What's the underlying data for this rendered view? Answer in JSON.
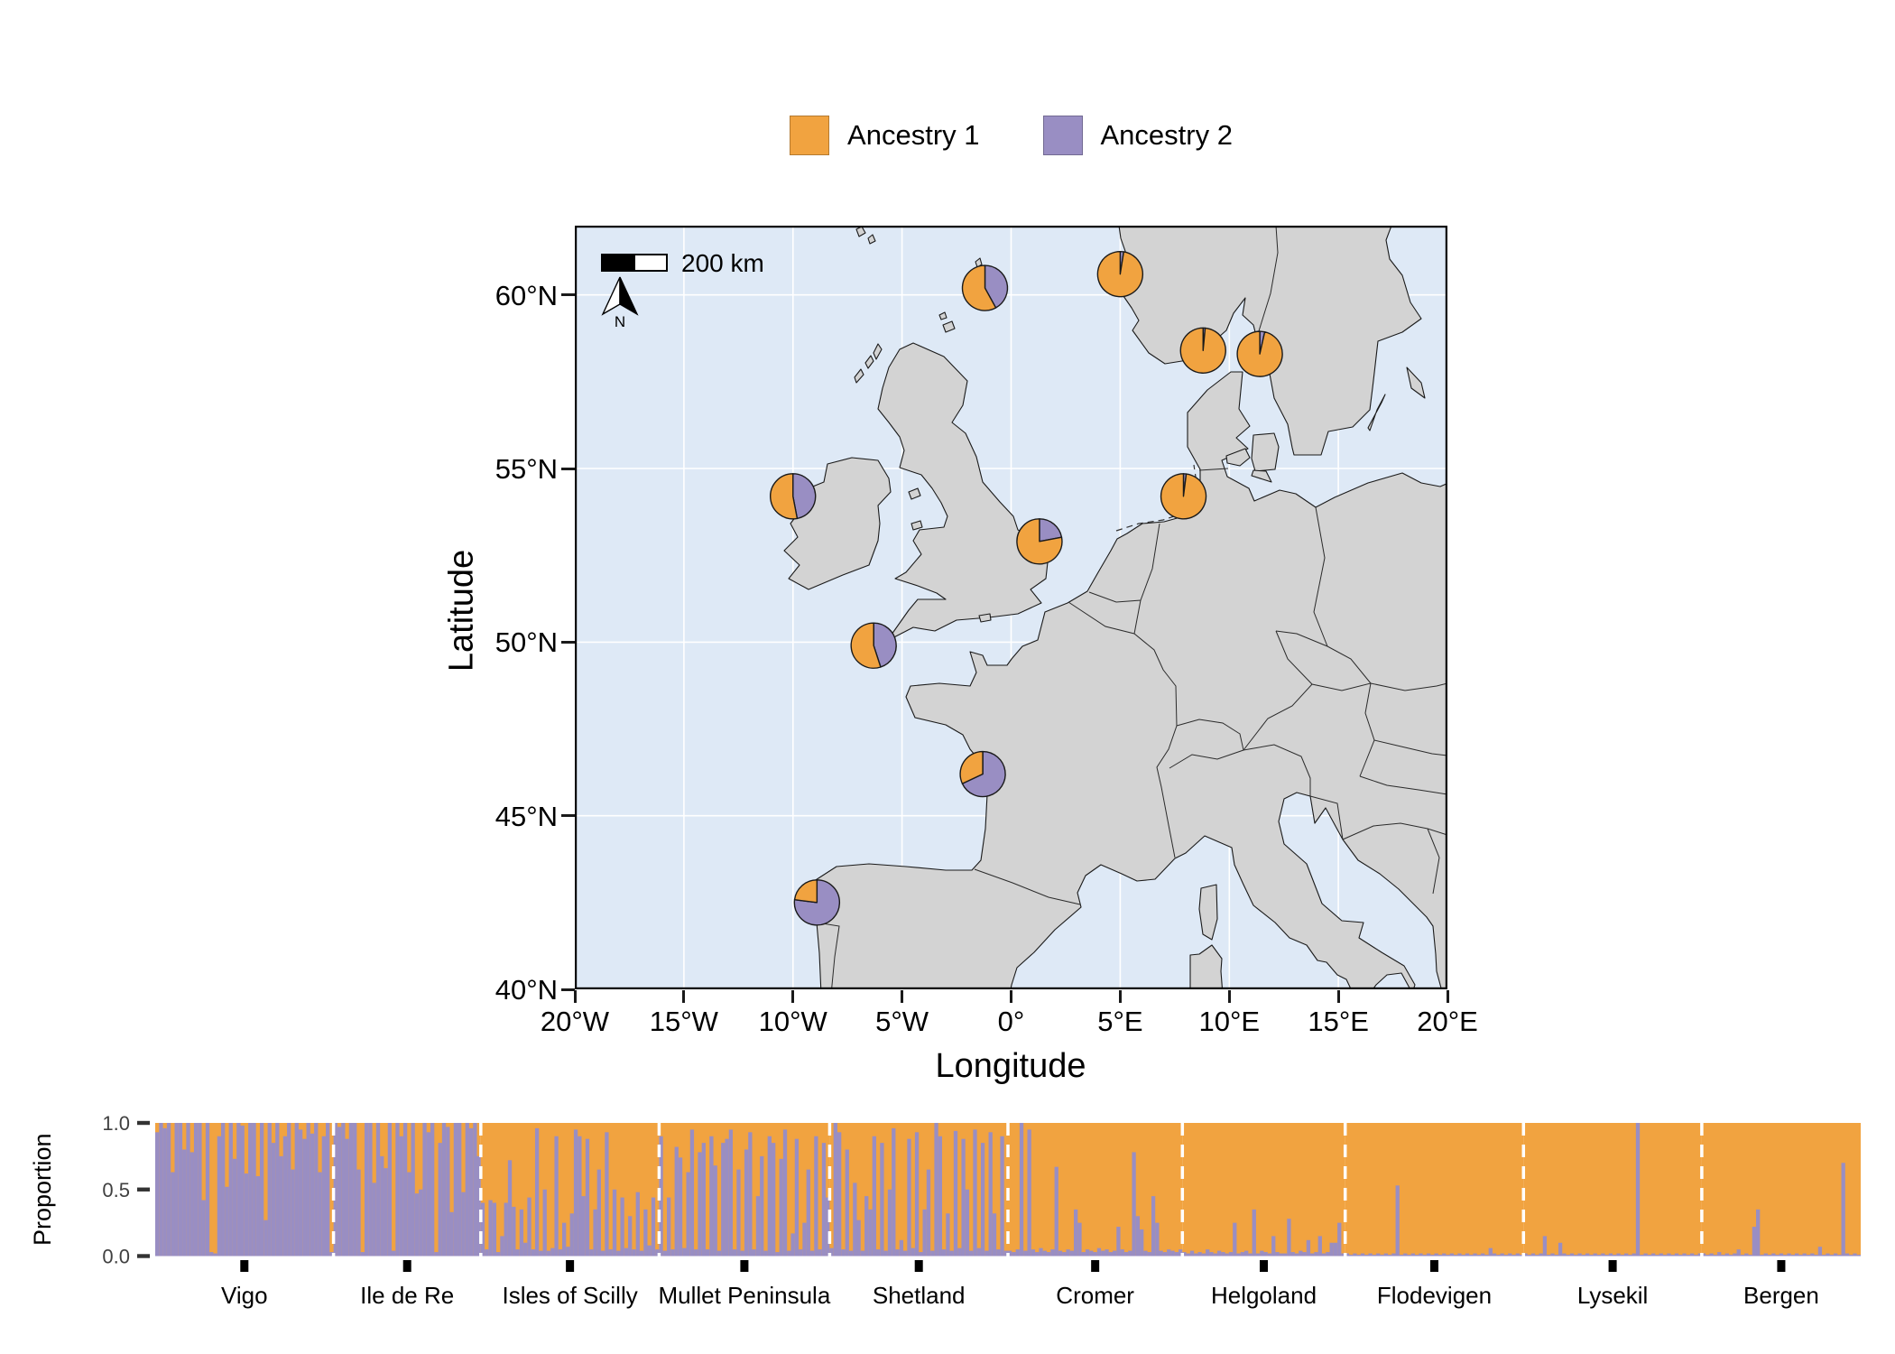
{
  "legend": {
    "items": [
      {
        "label": "Ancestry 1",
        "color": "#F1A340"
      },
      {
        "label": "Ancestry 2",
        "color": "#998EC3"
      }
    ]
  },
  "map": {
    "xlabel": "Longitude",
    "ylabel": "Latitude",
    "x_ticks": [
      {
        "label": "20°W",
        "value": -20
      },
      {
        "label": "15°W",
        "value": -15
      },
      {
        "label": "10°W",
        "value": -10
      },
      {
        "label": "5°W",
        "value": -5
      },
      {
        "label": "0°",
        "value": 0
      },
      {
        "label": "5°E",
        "value": 5
      },
      {
        "label": "10°E",
        "value": 10
      },
      {
        "label": "15°E",
        "value": 15
      },
      {
        "label": "20°E",
        "value": 20
      }
    ],
    "y_ticks": [
      {
        "label": "60°N",
        "value": 60
      },
      {
        "label": "55°N",
        "value": 55
      },
      {
        "label": "50°N",
        "value": 50
      },
      {
        "label": "45°N",
        "value": 45
      },
      {
        "label": "40°N",
        "value": 40
      }
    ],
    "scalebar_label": "200 km",
    "north_label": "N",
    "colors": {
      "sea": "#DEE9F6",
      "land": "#D3D3D3",
      "outline": "#1A1A1A",
      "grid": "#FFFFFF"
    }
  },
  "chart_data": [
    {
      "type": "pie",
      "title": "Ancestry proportions at sampling sites (map pies)",
      "series_names": [
        "Ancestry 1",
        "Ancestry 2"
      ],
      "xlabel": "Longitude",
      "ylabel": "Latitude",
      "xlim": [
        -20,
        20
      ],
      "ylim": [
        40,
        62
      ],
      "grid": true,
      "sites": [
        {
          "name": "Vigo",
          "lon": -8.9,
          "lat": 42.5,
          "ancestry1": 0.23,
          "ancestry2": 0.77
        },
        {
          "name": "Ile de Re",
          "lon": -1.3,
          "lat": 46.2,
          "ancestry1": 0.32,
          "ancestry2": 0.68
        },
        {
          "name": "Isles of Scilly",
          "lon": -6.3,
          "lat": 49.9,
          "ancestry1": 0.55,
          "ancestry2": 0.45
        },
        {
          "name": "Mullet Peninsula",
          "lon": -10.0,
          "lat": 54.2,
          "ancestry1": 0.53,
          "ancestry2": 0.47
        },
        {
          "name": "Shetland",
          "lon": -1.2,
          "lat": 60.2,
          "ancestry1": 0.58,
          "ancestry2": 0.42
        },
        {
          "name": "Cromer",
          "lon": 1.3,
          "lat": 52.9,
          "ancestry1": 0.78,
          "ancestry2": 0.22
        },
        {
          "name": "Helgoland",
          "lon": 7.9,
          "lat": 54.2,
          "ancestry1": 0.98,
          "ancestry2": 0.02
        },
        {
          "name": "Flodevigen",
          "lon": 8.8,
          "lat": 58.4,
          "ancestry1": 0.985,
          "ancestry2": 0.015
        },
        {
          "name": "Lysekil",
          "lon": 11.4,
          "lat": 58.3,
          "ancestry1": 0.965,
          "ancestry2": 0.035
        },
        {
          "name": "Bergen",
          "lon": 5.0,
          "lat": 60.6,
          "ancestry1": 0.975,
          "ancestry2": 0.025
        }
      ]
    },
    {
      "type": "bar",
      "stacked": true,
      "title": "Per-individual admixture proportions (STRUCTURE plot)",
      "ylabel": "Proportion",
      "ylim": [
        0,
        1
      ],
      "yticks": [
        {
          "label": "1.0",
          "value": 1.0
        },
        {
          "label": "0.5",
          "value": 0.5
        },
        {
          "label": "0.0",
          "value": 0.0
        }
      ],
      "series_names": [
        "Ancestry 1",
        "Ancestry 2"
      ],
      "groups": [
        {
          "label": "Vigo",
          "ancestry2_values": [
            0.93,
            1,
            0.96,
            1,
            0.63,
            1,
            1,
            0.8,
            1,
            0.78,
            1,
            1,
            0.42,
            1,
            0.03,
            0.02,
            0.9,
            1,
            0.52,
            1,
            0.73,
            1,
            0.98,
            0.62,
            1,
            1,
            0.6,
            1,
            0.27,
            1,
            0.85,
            1,
            0.75,
            0.9,
            1,
            0.65,
            1,
            0.95,
            0.88,
            1,
            0.92,
            1,
            0.63,
            0.9,
            1,
            0.03
          ]
        },
        {
          "label": "Ile de Re",
          "ancestry2_values": [
            1,
            0.97,
            1,
            0.88,
            1,
            1,
            0.65,
            0.03,
            1,
            1,
            0.55,
            1,
            0.75,
            0.66,
            1,
            0.04,
            1,
            0.9,
            1,
            0.63,
            1,
            0.47,
            0.5,
            1,
            0.93,
            1,
            0.03,
            0.85,
            1,
            0.97,
            0.33,
            1,
            1,
            0.48,
            1,
            0.96,
            1,
            0.75
          ]
        },
        {
          "label": "Isles of Scilly",
          "ancestry2_values": [
            0.4,
            0.05,
            0.42,
            0.4,
            0.03,
            0.15,
            0.4,
            0.72,
            0.37,
            0.05,
            0.35,
            0.1,
            0.44,
            0.05,
            0.96,
            0.04,
            0.5,
            0.04,
            0.06,
            0.9,
            0.05,
            0.25,
            0.07,
            0.32,
            0.95,
            0.9,
            0.45,
            0.88,
            0.05,
            0.35,
            0.65,
            0.04,
            0.93,
            0.05,
            0.5,
            0.04,
            0.44,
            0.06,
            0.3,
            0.05,
            0.48,
            0.04,
            0.35,
            0.08,
            0.44,
            0.05
          ]
        },
        {
          "label": "Mullet Peninsula",
          "ancestry2_values": [
            0.9,
            0.04,
            0.44,
            0.05,
            0.82,
            0.74,
            0.06,
            0.63,
            0.95,
            0.05,
            0.78,
            0.85,
            0.05,
            0.9,
            0.68,
            0.04,
            0.85,
            0.88,
            0.95,
            0.05,
            0.65,
            0.04,
            0.8,
            0.93,
            0.05,
            0.45,
            0.75,
            0.04,
            0.9,
            0.85,
            0.03,
            0.73,
            0.95,
            0.04,
            0.17,
            0.88,
            0.05,
            0.25,
            0.65,
            0.04,
            0.9,
            0.05,
            0.85,
            0.44
          ]
        },
        {
          "label": "Shetland",
          "ancestry2_values": [
            0.06,
            1,
            0.93,
            0.05,
            0.8,
            0.04,
            0.55,
            0.27,
            0.04,
            0.45,
            0.35,
            0.9,
            0.05,
            0.85,
            0.04,
            0.5,
            0.96,
            0.05,
            0.12,
            0.04,
            0.88,
            0.06,
            0.93,
            0.03,
            0.35,
            0.65,
            0.04,
            1,
            0.9,
            0.05,
            0.32,
            0.04,
            0.94,
            0.06,
            0.88,
            0.5,
            0.04,
            0.95,
            0.06,
            0.85,
            0.04,
            0.93,
            0.32,
            0.05,
            0.9,
            0.04
          ]
        },
        {
          "label": "Cromer",
          "ancestry2_values": [
            0.04,
            0.03,
            0.05,
            1,
            0.04,
            0.95,
            0.05,
            0.03,
            0.06,
            0.04,
            0.03,
            0.05,
            0.67,
            0.04,
            0.03,
            0.05,
            0.04,
            0.35,
            0.25,
            0.03,
            0.05,
            0.04,
            0.03,
            0.06,
            0.04,
            0.05,
            0.03,
            0.04,
            0.22,
            0.05,
            0.03,
            0.04,
            0.78,
            0.3,
            0.2,
            0.04,
            0.03,
            0.45,
            0.25,
            0.04,
            0.03,
            0.05,
            0.04,
            0.03,
            0.05
          ]
        },
        {
          "label": "Helgoland",
          "ancestry2_values": [
            0.03,
            0.02,
            0.04,
            0.02,
            0.03,
            0.02,
            0.05,
            0.03,
            0.02,
            0.04,
            0.03,
            0.02,
            0.03,
            0.25,
            0.02,
            0.03,
            0.04,
            0.02,
            0.35,
            0.02,
            0.04,
            0.03,
            0.02,
            0.15,
            0.03,
            0.02,
            0.02,
            0.28,
            0.03,
            0.02,
            0.04,
            0.03,
            0.12,
            0.02,
            0.03,
            0.15,
            0.02,
            0.03,
            0.1,
            0.1,
            0.25,
            0.02
          ]
        },
        {
          "label": "Flodevigen",
          "ancestry2_values": [
            0.02,
            0.01,
            0.02,
            0.01,
            0.02,
            0.01,
            0.02,
            0.01,
            0.02,
            0.01,
            0.02,
            0.01,
            0.02,
            0.53,
            0.01,
            0.02,
            0.01,
            0.02,
            0.01,
            0.02,
            0.01,
            0.02,
            0.01,
            0.02,
            0.01,
            0.02,
            0.01,
            0.02,
            0.01,
            0.02,
            0.01,
            0.02,
            0.01,
            0.02,
            0.01,
            0.02,
            0.01,
            0.06,
            0.02,
            0.01,
            0.02,
            0.01,
            0.02,
            0.01,
            0.02,
            0.01
          ]
        },
        {
          "label": "Lysekil",
          "ancestry2_values": [
            0.02,
            0.01,
            0.02,
            0.01,
            0.02,
            0.15,
            0.01,
            0.02,
            0.01,
            0.1,
            0.02,
            0.01,
            0.02,
            0.01,
            0.02,
            0.01,
            0.02,
            0.01,
            0.02,
            0.01,
            0.02,
            0.01,
            0.02,
            0.01,
            0.02,
            0.01,
            0.02,
            0.01,
            0.02,
            1,
            0.01,
            0.02,
            0.01,
            0.02,
            0.01,
            0.02,
            0.01,
            0.02,
            0.01,
            0.02,
            0.01,
            0.02,
            0.01,
            0.02,
            0.01,
            0.02
          ]
        },
        {
          "label": "Bergen",
          "ancestry2_values": [
            0.02,
            0.01,
            0.02,
            0.01,
            0.03,
            0.01,
            0.02,
            0.01,
            0.02,
            0.05,
            0.01,
            0.02,
            0.01,
            0.22,
            0.35,
            0.01,
            0.02,
            0.01,
            0.02,
            0.01,
            0.02,
            0.01,
            0.02,
            0.01,
            0.02,
            0.01,
            0.02,
            0.01,
            0.02,
            0.01,
            0.07,
            0.01,
            0.02,
            0.01,
            0.02,
            0.01,
            0.7,
            0.02,
            0.01,
            0.02,
            0.01
          ]
        }
      ]
    }
  ]
}
